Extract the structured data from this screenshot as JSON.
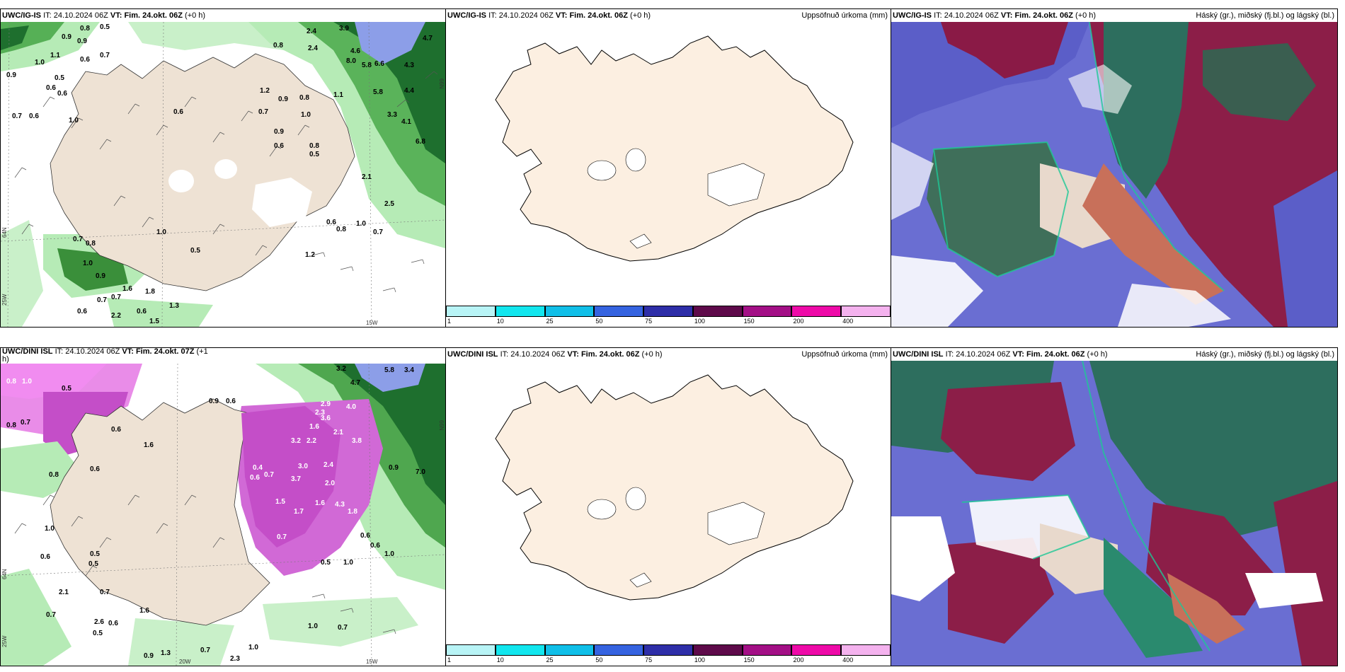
{
  "rows": [
    {
      "model": "UWC/IG-IS",
      "it_label": "IT:",
      "it_value": "24.10.2024 06Z",
      "vt_label": "VT:",
      "vt_value": "Fim. 24.okt. 06Z",
      "lead": "(+0 h)"
    },
    {
      "model": "UWC/DINI ISL",
      "it_label": "IT:",
      "it_value": "24.10.2024 06Z",
      "vt_label": "VT:",
      "vt_value": "Fim. 24.okt. 06Z",
      "lead": "(+0 h)",
      "vt_value_short": "Fim. 24.okt. 07Z",
      "lead_short": "(+1",
      "lead_short_cont": "h)"
    }
  ],
  "center_title": "Uppsöfnuð úrkoma (mm)",
  "right_title": "Háský (gr.), miðský (fj.bl.) og lágský (bl.)",
  "colorbar": {
    "ticks": [
      "1",
      "10",
      "25",
      "50",
      "75",
      "100",
      "150",
      "200",
      "400"
    ],
    "colors": [
      "#b8f4f6",
      "#12e6ee",
      "#10bfe8",
      "#3563e0",
      "#2e2ea8",
      "#5e0a4a",
      "#a30f86",
      "#ee0aa8",
      "#f4b2ee"
    ]
  },
  "axis_labels": {
    "lon_25w": "25W",
    "lon_20w": "20W",
    "lon_15w": "15W",
    "lat_64n": "64N",
    "lat_66n": "66N"
  },
  "top_left_values": [
    "0.8",
    "0.5",
    "0.9",
    "0.9",
    "1.0",
    "1.1",
    "0.6",
    "0.7",
    "0.6",
    "0.9",
    "0.6",
    "0.5",
    "0.7",
    "0.6",
    "1.0",
    "0.8",
    "2.4",
    "3.9",
    "4.7",
    "2.4",
    "4.6",
    "8.0",
    "5.8",
    "6.6",
    "4.3",
    "1.2",
    "0.8",
    "0.9",
    "0.7",
    "1.0",
    "1.1",
    "5.8",
    "4.4",
    "0.6",
    "0.9",
    "0.6",
    "0.8",
    "0.5",
    "3.3",
    "4.1",
    "6.8",
    "2.1",
    "2.5",
    "0.6",
    "0.8",
    "1.0",
    "0.7",
    "1.0",
    "0.5",
    "0.7",
    "0.8",
    "1.2",
    "1.0",
    "0.9",
    "1.6",
    "1.8",
    "0.7",
    "2.2",
    "0.6",
    "1.5",
    "1.3",
    "0.6",
    "0.7"
  ],
  "bottom_left_values": [
    "0.8",
    "1.0",
    "0.5",
    "0.8",
    "0.7",
    "0.6",
    "1.6",
    "0.8",
    "0.6",
    "1.0",
    "0.6",
    "0.5",
    "0.4",
    "0.6",
    "0.7",
    "0.9",
    "0.6",
    "5.8",
    "3.4",
    "3.2",
    "4.7",
    "4.0",
    "2.9",
    "3.6",
    "1.6",
    "2.3",
    "3.2",
    "2.2",
    "2.1",
    "3.8",
    "3.0",
    "3.7",
    "1.5",
    "1.7",
    "1.6",
    "4.3",
    "1.8",
    "2.4",
    "2.0",
    "0.7",
    "0.6",
    "1.0",
    "7.0",
    "0.9",
    "0.5",
    "1.0",
    "0.6",
    "0.5",
    "0.7",
    "1.6",
    "0.7",
    "1.0",
    "2.1",
    "2.6",
    "0.5",
    "0.6",
    "0.9",
    "1.3",
    "0.7",
    "2.3",
    "1.0",
    "0.7"
  ]
}
